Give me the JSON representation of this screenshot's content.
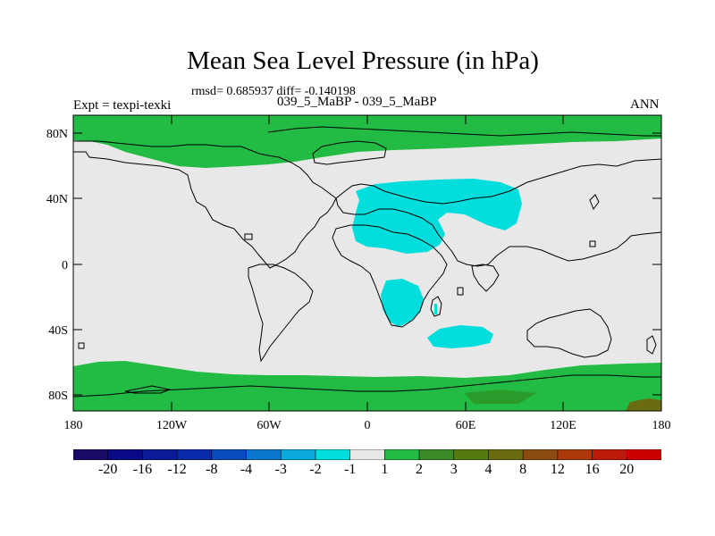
{
  "title": "Mean Sea Level Pressure (in hPa)",
  "stats": "rmsd= 0.685937 diff= -0.140198",
  "experiment": "Expt = texpi-texki",
  "runs": "039_5_MaBP - 039_5_MaBP",
  "season": "ANN",
  "map": {
    "x_ticks": [
      "180",
      "120W",
      "60W",
      "0",
      "60E",
      "120E",
      "180"
    ],
    "y_ticks": [
      "80N",
      "40N",
      "0",
      "40S",
      "80S"
    ],
    "colors": {
      "ocean_land_neutral": "#e8e8e8",
      "positive_1_2": "#22bb44",
      "negative_2_1": "#00dddd",
      "positive_4_8": "#6b6b10",
      "positive_2_3": "#2a9a2a"
    }
  },
  "colorbar": {
    "labels": [
      "-20",
      "-16",
      "-12",
      "-8",
      "-4",
      "-3",
      "-2",
      "-1",
      "1",
      "2",
      "3",
      "4",
      "8",
      "12",
      "16",
      "20"
    ],
    "colors": [
      "#1a0a66",
      "#0a0a88",
      "#0a1a99",
      "#0a2aaa",
      "#0a4bbb",
      "#0a77cc",
      "#0aaadd",
      "#00dddd",
      "#e8e8e8",
      "#22bb44",
      "#3a8a2a",
      "#557a10",
      "#6a6a10",
      "#8a4a10",
      "#aa3a0a",
      "#bb1a0a",
      "#cc0000"
    ]
  }
}
